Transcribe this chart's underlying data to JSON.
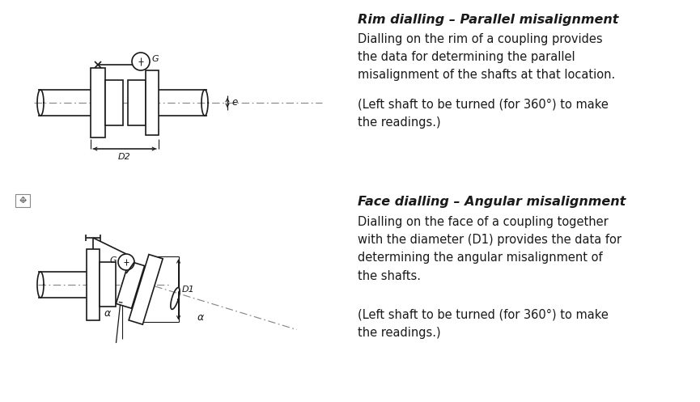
{
  "bg_color": "#ffffff",
  "line_color": "#1a1a1a",
  "dash_color": "#888888",
  "fig_width": 8.65,
  "fig_height": 4.97,
  "dpi": 100,
  "title1": "Rim dialling – Parallel misalignment",
  "body1a": "Dialling on the rim of a coupling provides\nthe data for determining the parallel\nmisalignment of the shafts at that location.",
  "body1b": "(Left shaft to be turned (for 360°) to make\nthe readings.)",
  "title2": "Face dialling – Angular misalignment",
  "body2a": "Dialling on the face of a coupling together\nwith the diameter (D1) provides the data for\ndetermining the angular misalignment of\nthe shafts.",
  "body2b": "(Left shaft to be turned (for 360°) to make\nthe readings.)"
}
